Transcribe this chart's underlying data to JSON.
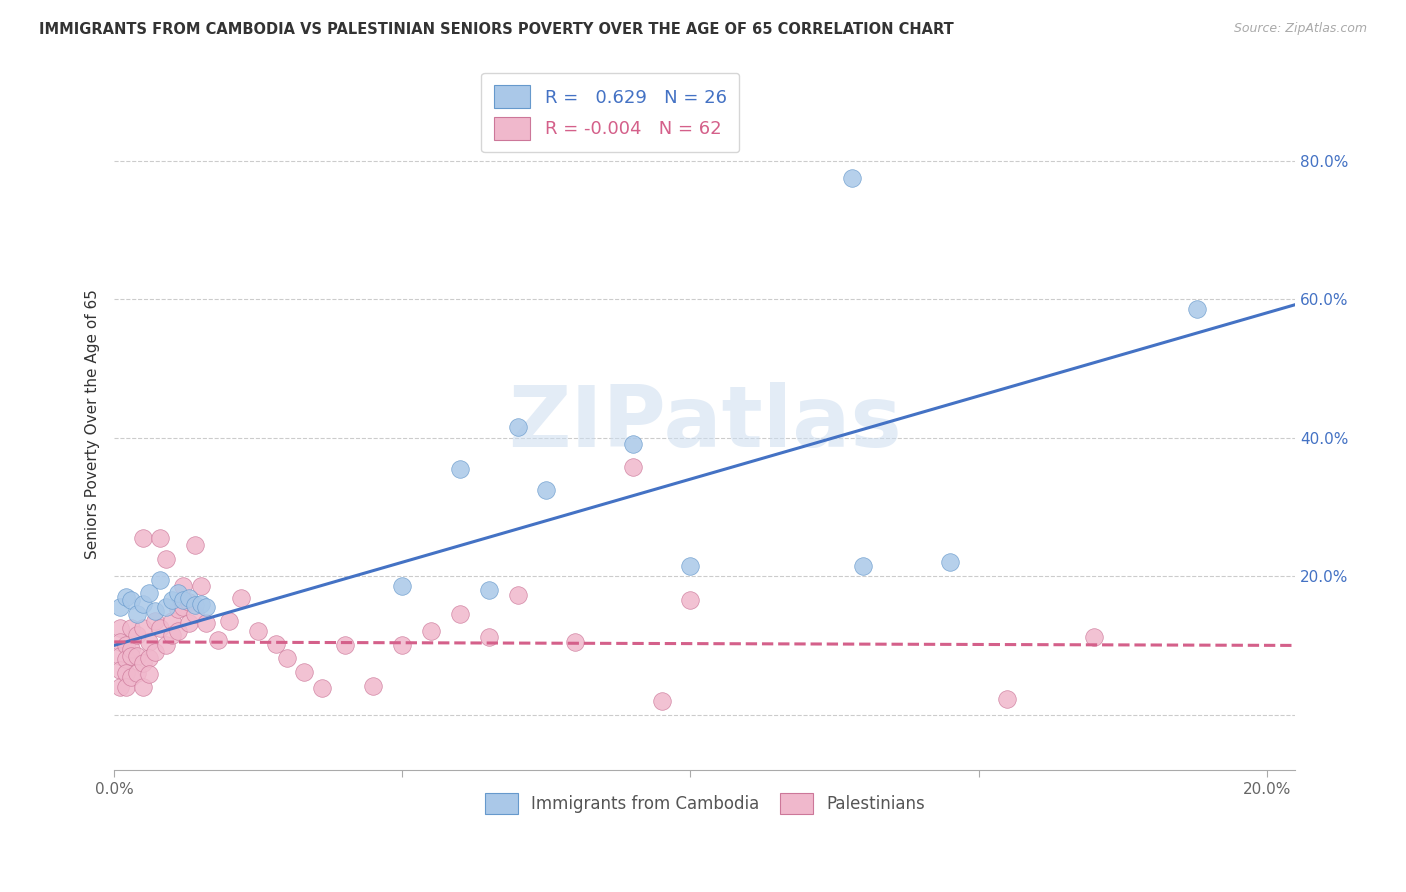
{
  "title": "IMMIGRANTS FROM CAMBODIA VS PALESTINIAN SENIORS POVERTY OVER THE AGE OF 65 CORRELATION CHART",
  "source": "Source: ZipAtlas.com",
  "ylabel": "Seniors Poverty Over the Age of 65",
  "xlim": [
    0.0,
    0.205
  ],
  "ylim": [
    -0.08,
    0.92
  ],
  "xticks": [
    0.0,
    0.05,
    0.1,
    0.15,
    0.2
  ],
  "xtick_labels": [
    "0.0%",
    "",
    "",
    "",
    "20.0%"
  ],
  "yticks": [
    0.0,
    0.2,
    0.4,
    0.6,
    0.8
  ],
  "ytick_labels": [
    "",
    "20.0%",
    "40.0%",
    "60.0%",
    "80.0%"
  ],
  "cambodia_R": 0.629,
  "cambodia_N": 26,
  "palestinian_R": -0.004,
  "palestinian_N": 62,
  "cambodia_color": "#aac8e8",
  "cambodia_edge_color": "#6699cc",
  "cambodia_line_color": "#4472c4",
  "palestinian_color": "#f0b8cc",
  "palestinian_edge_color": "#cc7799",
  "palestinian_line_color": "#d4608a",
  "watermark": "ZIPatlas",
  "cambodia_x": [
    0.001,
    0.002,
    0.003,
    0.004,
    0.005,
    0.006,
    0.007,
    0.008,
    0.009,
    0.01,
    0.011,
    0.012,
    0.013,
    0.014,
    0.015,
    0.016,
    0.05,
    0.06,
    0.065,
    0.07,
    0.075,
    0.09,
    0.1,
    0.13,
    0.145,
    0.188
  ],
  "cambodia_y": [
    0.155,
    0.17,
    0.165,
    0.145,
    0.16,
    0.175,
    0.15,
    0.195,
    0.155,
    0.165,
    0.175,
    0.165,
    0.168,
    0.158,
    0.16,
    0.155,
    0.185,
    0.355,
    0.18,
    0.415,
    0.325,
    0.39,
    0.215,
    0.215,
    0.22,
    0.585
  ],
  "cambodia_outlier_x": [
    0.128
  ],
  "cambodia_outlier_y": [
    0.775
  ],
  "palestinian_x": [
    0.001,
    0.001,
    0.001,
    0.001,
    0.001,
    0.002,
    0.002,
    0.002,
    0.002,
    0.003,
    0.003,
    0.003,
    0.003,
    0.004,
    0.004,
    0.004,
    0.005,
    0.005,
    0.005,
    0.005,
    0.006,
    0.006,
    0.006,
    0.007,
    0.007,
    0.008,
    0.008,
    0.009,
    0.009,
    0.01,
    0.01,
    0.011,
    0.011,
    0.012,
    0.012,
    0.013,
    0.013,
    0.014,
    0.014,
    0.015,
    0.016,
    0.018,
    0.02,
    0.022,
    0.025,
    0.028,
    0.03,
    0.033,
    0.036,
    0.04,
    0.045,
    0.05,
    0.055,
    0.06,
    0.065,
    0.07,
    0.08,
    0.09,
    0.095,
    0.1,
    0.155,
    0.17
  ],
  "palestinian_y": [
    0.125,
    0.105,
    0.085,
    0.065,
    0.04,
    0.1,
    0.08,
    0.06,
    0.04,
    0.125,
    0.095,
    0.085,
    0.055,
    0.115,
    0.085,
    0.06,
    0.255,
    0.125,
    0.075,
    0.04,
    0.105,
    0.082,
    0.058,
    0.135,
    0.09,
    0.255,
    0.125,
    0.225,
    0.1,
    0.135,
    0.115,
    0.152,
    0.12,
    0.185,
    0.155,
    0.162,
    0.132,
    0.245,
    0.145,
    0.185,
    0.132,
    0.108,
    0.135,
    0.168,
    0.12,
    0.102,
    0.082,
    0.062,
    0.038,
    0.1,
    0.042,
    0.1,
    0.12,
    0.145,
    0.112,
    0.172,
    0.105,
    0.358,
    0.02,
    0.165,
    0.022,
    0.112
  ]
}
